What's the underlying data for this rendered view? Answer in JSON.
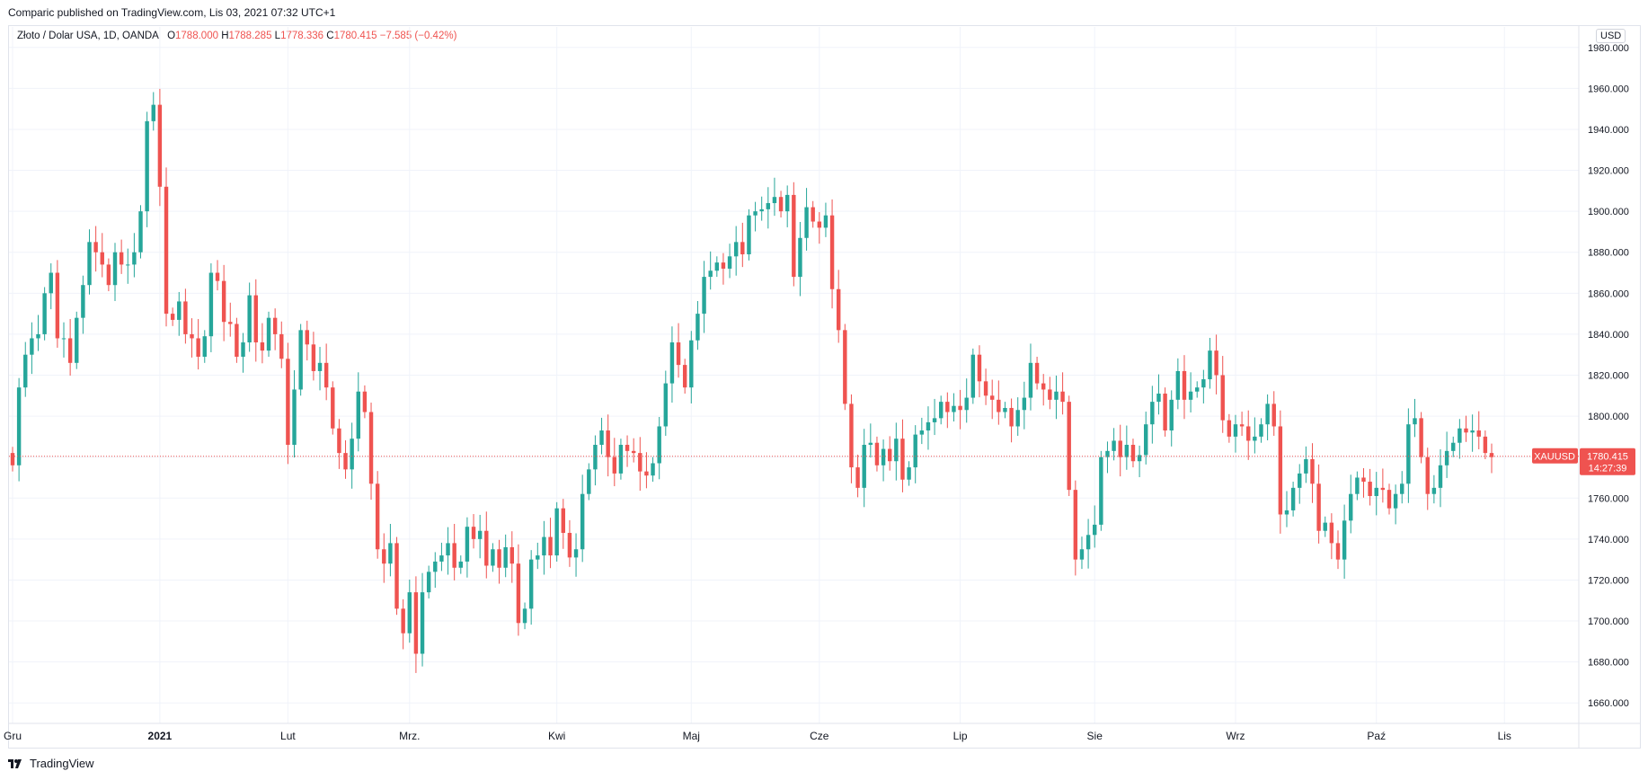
{
  "header": {
    "published": "Comparic published on TradingView.com, Lis 03, 2021 07:32 UTC+1"
  },
  "legend": {
    "symbol": "Złoto / Dolar USA, 1D, OANDA",
    "o_label": "O",
    "o_value": "1788.000",
    "h_label": "H",
    "h_value": "1788.285",
    "l_label": "L",
    "l_value": "1778.336",
    "c_label": "C",
    "c_value": "1780.415",
    "change": "−7.585 (−0.42%)"
  },
  "currency": "USD",
  "price_tag": {
    "symbol": "XAUUSD",
    "price": "1780.415",
    "countdown": "14:27:39"
  },
  "footer": {
    "brand": "TradingView"
  },
  "colors": {
    "up": "#26a69a",
    "down": "#ef5350",
    "grid": "#f0f3fa",
    "text": "#131722"
  },
  "chart_data": {
    "type": "candlestick",
    "y_axis": {
      "range": [
        1650,
        1990
      ],
      "ticks": [
        1660,
        1680,
        1700,
        1720,
        1740,
        1760,
        1780,
        1800,
        1820,
        1840,
        1860,
        1880,
        1900,
        1920,
        1940,
        1960,
        1980
      ],
      "tick_labels": [
        "1660.000",
        "1680.000",
        "1700.000",
        "1720.000",
        "1740.000",
        "1760.000",
        "1780.000",
        "1800.000",
        "1820.000",
        "1840.000",
        "1860.000",
        "1880.000",
        "1900.000",
        "1920.000",
        "1940.000",
        "1960.000",
        "1980.000"
      ]
    },
    "x_axis": {
      "labels": [
        {
          "text": "Gru",
          "index": 0
        },
        {
          "text": "2021",
          "index": 23,
          "bold": true
        },
        {
          "text": "Lut",
          "index": 43
        },
        {
          "text": "Mrz.",
          "index": 62
        },
        {
          "text": "Kwi",
          "index": 85
        },
        {
          "text": "Maj",
          "index": 106
        },
        {
          "text": "Cze",
          "index": 126
        },
        {
          "text": "Lip",
          "index": 148
        },
        {
          "text": "Sie",
          "index": 169
        },
        {
          "text": "Wrz",
          "index": 191
        },
        {
          "text": "Paź",
          "index": 213
        },
        {
          "text": "Lis",
          "index": 233
        }
      ]
    },
    "last_price": 1780.415,
    "grid": true,
    "closes": [
      1776,
      1814,
      1830,
      1838,
      1840,
      1860,
      1870,
      1838,
      1838,
      1826,
      1848,
      1864,
      1885,
      1880,
      1874,
      1864,
      1880,
      1874,
      1874,
      1880,
      1900,
      1944,
      1952,
      1912,
      1850,
      1847,
      1856,
      1840,
      1838,
      1829,
      1839,
      1870,
      1866,
      1846,
      1845,
      1829,
      1836,
      1859,
      1836,
      1832,
      1848,
      1840,
      1828,
      1786,
      1813,
      1842,
      1835,
      1822,
      1826,
      1814,
      1794,
      1782,
      1774,
      1789,
      1812,
      1802,
      1767,
      1735,
      1728,
      1738,
      1706,
      1694,
      1714,
      1684,
      1714,
      1724,
      1729,
      1732,
      1738,
      1726,
      1729,
      1746,
      1740,
      1744,
      1727,
      1735,
      1726,
      1736,
      1728,
      1699,
      1706,
      1730,
      1732,
      1741,
      1732,
      1755,
      1743,
      1731,
      1735,
      1762,
      1774,
      1786,
      1793,
      1780,
      1772,
      1786,
      1783,
      1782,
      1773,
      1771,
      1777,
      1795,
      1816,
      1836,
      1825,
      1814,
      1837,
      1850,
      1868,
      1871,
      1875,
      1872,
      1878,
      1885,
      1879,
      1898,
      1900,
      1901,
      1904,
      1907,
      1900,
      1908,
      1868,
      1887,
      1902,
      1895,
      1892,
      1898,
      1862,
      1842,
      1806,
      1775,
      1765,
      1786,
      1787,
      1776,
      1784,
      1778,
      1789,
      1769,
      1775,
      1791,
      1793,
      1797,
      1799,
      1807,
      1802,
      1805,
      1803,
      1809,
      1830,
      1817,
      1810,
      1808,
      1802,
      1804,
      1795,
      1803,
      1809,
      1826,
      1816,
      1813,
      1808,
      1812,
      1807,
      1764,
      1730,
      1735,
      1742,
      1747,
      1780,
      1783,
      1788,
      1780,
      1786,
      1778,
      1781,
      1796,
      1807,
      1811,
      1793,
      1808,
      1822,
      1808,
      1812,
      1814,
      1818,
      1832,
      1820,
      1798,
      1790,
      1796,
      1795,
      1788,
      1790,
      1796,
      1806,
      1795,
      1752,
      1754,
      1765,
      1772,
      1779,
      1767,
      1744,
      1748,
      1738,
      1730,
      1749,
      1762,
      1770,
      1768,
      1761,
      1765,
      1764,
      1755,
      1762,
      1767,
      1796,
      1799,
      1780,
      1762,
      1765,
      1776,
      1783,
      1787,
      1794,
      1792,
      1793,
      1790,
      1782,
      1780
    ]
  }
}
